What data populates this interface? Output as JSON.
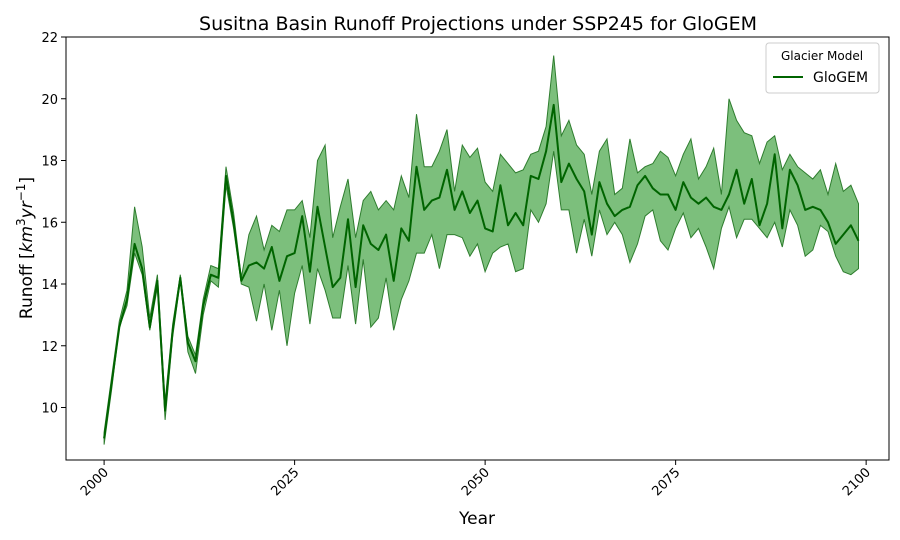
{
  "chart_data": {
    "type": "line",
    "title": "Susitna Basin Runoff Projections under SSP245 for GloGEM",
    "xlabel": "Year",
    "ylabel_main": "Runoff [",
    "ylabel_unit_km": "km",
    "ylabel_unit_exp3": "3",
    "ylabel_unit_yr": "yr",
    "ylabel_unit_expm1": "−1",
    "ylabel_close": "]",
    "xlim": [
      1995,
      2103
    ],
    "ylim": [
      8.3,
      22
    ],
    "xticks": [
      2000,
      2025,
      2050,
      2075,
      2100
    ],
    "xtick_labels": [
      "2000",
      "2025",
      "2050",
      "2075",
      "2100"
    ],
    "yticks": [
      10,
      12,
      14,
      16,
      18,
      20,
      22
    ],
    "ytick_labels": [
      "10",
      "12",
      "14",
      "16",
      "18",
      "20",
      "22"
    ],
    "legend": {
      "title": "Glacier Model",
      "position": "top-right",
      "entries": [
        "GloGEM"
      ]
    },
    "colors": {
      "line": "#006400",
      "band_fill": "#4aa64a",
      "band_edge": "#2e7d2e"
    },
    "series": [
      {
        "name": "GloGEM",
        "x": [
          2000,
          2001,
          2002,
          2003,
          2004,
          2005,
          2006,
          2007,
          2008,
          2009,
          2010,
          2011,
          2012,
          2013,
          2014,
          2015,
          2016,
          2017,
          2018,
          2019,
          2020,
          2021,
          2022,
          2023,
          2024,
          2025,
          2026,
          2027,
          2028,
          2029,
          2030,
          2031,
          2032,
          2033,
          2034,
          2035,
          2036,
          2037,
          2038,
          2039,
          2040,
          2041,
          2042,
          2043,
          2044,
          2045,
          2046,
          2047,
          2048,
          2049,
          2050,
          2051,
          2052,
          2053,
          2054,
          2055,
          2056,
          2057,
          2058,
          2059,
          2060,
          2061,
          2062,
          2063,
          2064,
          2065,
          2066,
          2067,
          2068,
          2069,
          2070,
          2071,
          2072,
          2073,
          2074,
          2075,
          2076,
          2077,
          2078,
          2079,
          2080,
          2081,
          2082,
          2083,
          2084,
          2085,
          2086,
          2087,
          2088,
          2089,
          2090,
          2091,
          2092,
          2093,
          2094,
          2095,
          2096,
          2097,
          2098,
          2099
        ],
        "values": [
          9.0,
          10.8,
          12.6,
          13.5,
          15.3,
          14.5,
          12.6,
          14.1,
          9.9,
          12.5,
          14.2,
          12.1,
          11.5,
          13.3,
          14.3,
          14.2,
          17.5,
          16.0,
          14.1,
          14.6,
          14.7,
          14.5,
          15.2,
          14.1,
          14.9,
          15.0,
          16.2,
          14.4,
          16.5,
          15.2,
          13.9,
          14.2,
          16.1,
          13.9,
          15.9,
          15.3,
          15.1,
          15.6,
          14.1,
          15.8,
          15.4,
          17.8,
          16.4,
          16.7,
          16.8,
          17.7,
          16.4,
          17.0,
          16.3,
          16.7,
          15.8,
          15.7,
          17.2,
          15.9,
          16.3,
          15.9,
          17.5,
          17.4,
          18.3,
          19.8,
          17.3,
          17.9,
          17.4,
          17.0,
          15.6,
          17.3,
          16.6,
          16.2,
          16.4,
          16.5,
          17.2,
          17.5,
          17.1,
          16.9,
          16.9,
          16.4,
          17.3,
          16.8,
          16.6,
          16.8,
          16.5,
          16.4,
          16.9,
          17.7,
          16.6,
          17.4,
          15.9,
          16.6,
          18.2,
          15.8,
          17.7,
          17.2,
          16.4,
          16.5,
          16.4,
          16.0,
          15.3,
          15.6,
          15.9,
          15.4
        ],
        "upper": [
          9.2,
          11.0,
          12.8,
          13.8,
          16.5,
          15.2,
          12.9,
          14.3,
          10.2,
          12.7,
          14.3,
          12.3,
          11.7,
          13.5,
          14.6,
          14.5,
          17.8,
          16.3,
          14.2,
          15.6,
          16.2,
          15.1,
          15.9,
          15.7,
          16.4,
          16.4,
          16.7,
          15.5,
          18.0,
          18.5,
          15.5,
          16.5,
          17.4,
          15.5,
          16.7,
          17.0,
          16.4,
          16.7,
          16.4,
          17.5,
          16.8,
          19.5,
          17.8,
          17.8,
          18.3,
          19.0,
          17.0,
          18.5,
          18.1,
          18.4,
          17.3,
          17.0,
          18.2,
          17.9,
          17.6,
          17.7,
          18.2,
          18.3,
          19.1,
          21.4,
          18.8,
          19.3,
          18.5,
          18.2,
          16.9,
          18.3,
          18.7,
          16.9,
          17.1,
          18.7,
          17.6,
          17.8,
          17.9,
          18.3,
          18.1,
          17.5,
          18.2,
          18.7,
          17.4,
          17.8,
          18.4,
          16.9,
          20.0,
          19.3,
          18.9,
          18.8,
          17.9,
          18.6,
          18.8,
          17.7,
          18.2,
          17.8,
          17.6,
          17.4,
          17.7,
          16.9,
          17.9,
          17.0,
          17.2,
          16.6
        ],
        "lower": [
          8.8,
          10.6,
          12.6,
          13.3,
          15.0,
          14.3,
          12.5,
          13.9,
          9.6,
          12.3,
          14.1,
          11.8,
          11.1,
          13.0,
          14.1,
          13.9,
          17.2,
          15.8,
          14.0,
          13.9,
          12.8,
          14.0,
          12.5,
          13.8,
          12.0,
          13.7,
          14.6,
          12.7,
          14.5,
          13.8,
          12.9,
          12.9,
          14.6,
          12.7,
          14.8,
          12.6,
          12.9,
          14.2,
          12.5,
          13.5,
          14.1,
          15.0,
          15.0,
          15.6,
          14.5,
          15.6,
          15.6,
          15.5,
          14.9,
          15.3,
          14.4,
          15.0,
          15.2,
          15.3,
          14.4,
          14.5,
          16.4,
          16.0,
          16.6,
          18.3,
          16.4,
          16.4,
          15.0,
          16.1,
          14.9,
          16.4,
          15.6,
          16.0,
          15.6,
          14.7,
          15.3,
          16.2,
          16.4,
          15.4,
          15.1,
          15.8,
          16.3,
          15.5,
          15.8,
          15.2,
          14.5,
          15.8,
          16.5,
          15.5,
          16.1,
          16.1,
          15.8,
          15.5,
          16.0,
          15.2,
          16.4,
          15.9,
          14.9,
          15.1,
          15.9,
          15.7,
          14.9,
          14.4,
          14.3,
          14.5
        ]
      }
    ]
  }
}
